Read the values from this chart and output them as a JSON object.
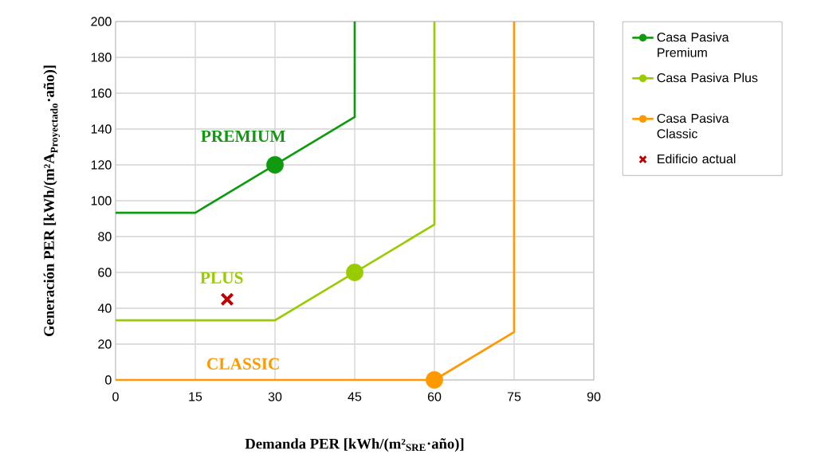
{
  "chart_data": {
    "type": "line",
    "xlabel": "Demanda PER [kWh/(m²$_{SRE}$·año)]",
    "ylabel": "\\text{Generación PER [kWh/(m²A}_{\\text{Proyectado}}\\text{·año)]}",
    "xlim": [
      0,
      90
    ],
    "xticks": [
      0,
      15,
      30,
      45,
      60,
      75,
      90
    ],
    "ylim": [
      0,
      200
    ],
    "yticks": [
      0,
      20,
      40,
      60,
      80,
      100,
      120,
      140,
      160,
      180,
      200
    ],
    "grid": true,
    "legend": "right",
    "series": [
      {
        "name": "Casa Pasiva Premium",
        "color": "#109a10",
        "x": [
          0,
          15,
          45,
          45
        ],
        "values": [
          93.3,
          93.3,
          146.7,
          200
        ]
      },
      {
        "name": "Casa Pasiva Plus",
        "color": "#99cc00",
        "x": [
          0,
          30,
          60,
          60
        ],
        "values": [
          33.3,
          33.3,
          86.7,
          200
        ]
      },
      {
        "name": "Casa Pasiva Classic",
        "color": "#ff9900",
        "x": [
          0,
          60,
          75,
          75
        ],
        "values": [
          0,
          0,
          26.7,
          200
        ]
      },
      {
        "name": "Edificio actual",
        "type": "scatter",
        "marker": "cross",
        "color": "#c00000",
        "x": [
          21
        ],
        "values": [
          45
        ]
      },
      {
        "type": "scatter",
        "marker": "circle",
        "color": "#109a10",
        "x": [
          30
        ],
        "values": [
          120
        ]
      },
      {
        "type": "scatter",
        "marker": "circle",
        "color": "#99cc00",
        "x": [
          45
        ],
        "values": [
          60
        ]
      },
      {
        "type": "scatter",
        "marker": "circle",
        "color": "#ff9900",
        "x": [
          60
        ],
        "values": [
          0
        ]
      }
    ],
    "annotations": [
      "PREMIUM",
      "PLUS",
      "CLASSIC"
    ]
  }
}
